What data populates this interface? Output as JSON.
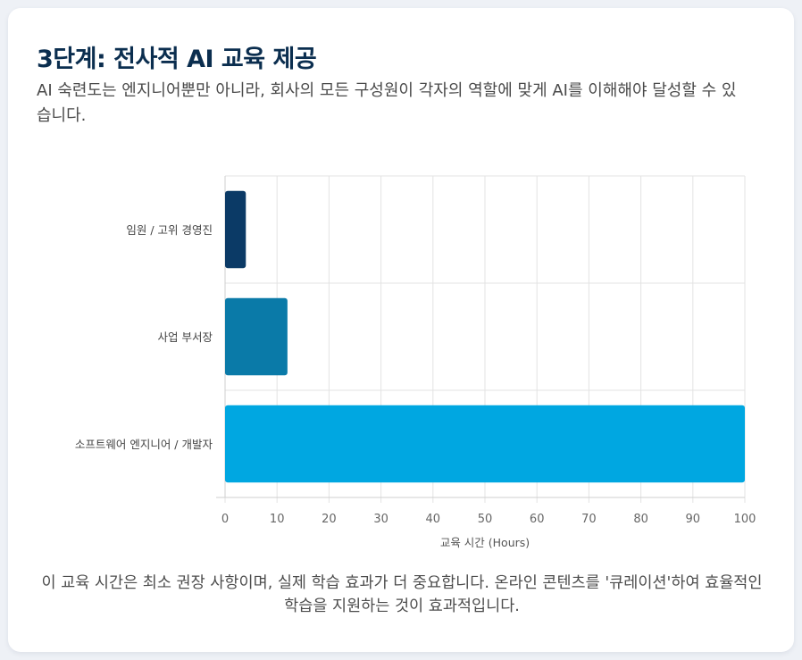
{
  "title": "3단계: 전사적 AI 교육 제공",
  "subtitle": "AI 숙련도는 엔지니어뿐만 아니라, 회사의 모든 구성원이 각자의 역할에 맞게 AI를 이해해야 달성할 수 있습니다.",
  "caption": "이 교육 시간은 최소 권장 사항이며, 실제 학습 효과가 더 중요합니다. 온라인 콘텐츠를 '큐레이션'하여 효율적인 학습을 지원하는 것이 효과적입니다.",
  "chart_data": {
    "type": "bar",
    "orientation": "horizontal",
    "categories": [
      "임원 / 고위 경영진",
      "사업 부서장",
      "소프트웨어 엔지니어 / 개발자"
    ],
    "values": [
      4,
      12,
      100
    ],
    "colors": [
      "#0b3a66",
      "#0a7aa8",
      "#00a7e1"
    ],
    "xlabel": "교육 시간 (Hours)",
    "ylabel": "",
    "xlim": [
      0,
      100
    ],
    "xticks": [
      0,
      10,
      20,
      30,
      40,
      50,
      60,
      70,
      80,
      90,
      100
    ],
    "grid": true
  }
}
